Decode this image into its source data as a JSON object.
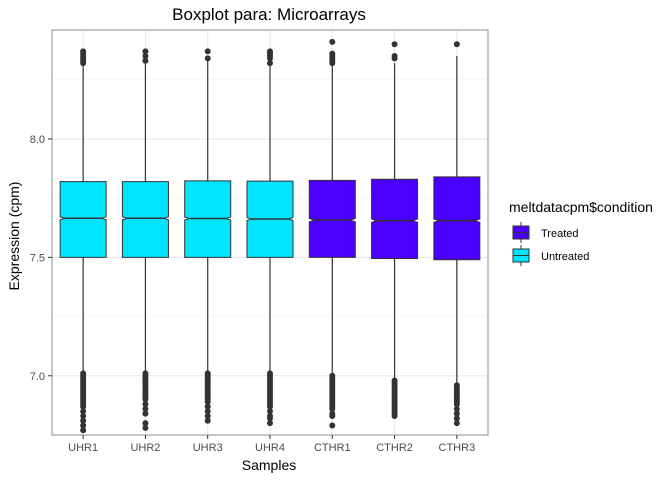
{
  "chart_data": {
    "type": "boxplot",
    "title": "Boxplot para: Microarrays",
    "xlabel": "Samples",
    "ylabel": "Expression (cpm)",
    "ylim": [
      6.75,
      8.46
    ],
    "yticks": [
      7.0,
      7.5,
      8.0
    ],
    "ytick_labels": [
      "7.0",
      "7.5",
      "8.0"
    ],
    "grid": true,
    "notched": true,
    "legend": {
      "title": "meltdatacpm$condition",
      "position": "right",
      "entries": [
        {
          "label": "Treated",
          "color": "#4b00ff"
        },
        {
          "label": "Untreated",
          "color": "#00e5ff"
        }
      ]
    },
    "categories": [
      "UHR1",
      "UHR2",
      "UHR3",
      "UHR4",
      "CTHR1",
      "CTHR2",
      "CTHR3"
    ],
    "boxes": [
      {
        "name": "UHR1",
        "condition": "Untreated",
        "q1": 7.5,
        "median": 7.665,
        "q3": 7.82,
        "whisker_low": 7.02,
        "whisker_high": 8.31,
        "notch": 0.006,
        "outliers_high": [
          8.32,
          8.33,
          8.34,
          8.35,
          8.36,
          8.37
        ],
        "outliers_low": [
          7.01,
          7.0,
          6.99,
          6.98,
          6.97,
          6.96,
          6.95,
          6.94,
          6.93,
          6.92,
          6.91,
          6.9,
          6.89,
          6.88,
          6.87,
          6.85,
          6.83,
          6.81,
          6.79,
          6.77
        ]
      },
      {
        "name": "UHR2",
        "condition": "Untreated",
        "q1": 7.5,
        "median": 7.665,
        "q3": 7.82,
        "whisker_low": 7.02,
        "whisker_high": 8.32,
        "notch": 0.006,
        "outliers_high": [
          8.33,
          8.35,
          8.37
        ],
        "outliers_low": [
          7.01,
          7.0,
          6.99,
          6.98,
          6.97,
          6.96,
          6.95,
          6.94,
          6.93,
          6.92,
          6.91,
          6.9,
          6.88,
          6.86,
          6.84,
          6.8,
          6.78
        ]
      },
      {
        "name": "UHR3",
        "condition": "Untreated",
        "q1": 7.5,
        "median": 7.664,
        "q3": 7.823,
        "whisker_low": 7.02,
        "whisker_high": 8.33,
        "notch": 0.006,
        "outliers_high": [
          8.34,
          8.37
        ],
        "outliers_low": [
          7.01,
          7.0,
          6.99,
          6.98,
          6.97,
          6.96,
          6.95,
          6.94,
          6.93,
          6.92,
          6.91,
          6.9,
          6.89,
          6.87,
          6.85,
          6.83,
          6.81
        ]
      },
      {
        "name": "UHR4",
        "condition": "Untreated",
        "q1": 7.5,
        "median": 7.662,
        "q3": 7.822,
        "whisker_low": 7.02,
        "whisker_high": 8.31,
        "notch": 0.006,
        "outliers_high": [
          8.32,
          8.34,
          8.35,
          8.36,
          8.37
        ],
        "outliers_low": [
          7.01,
          7.0,
          6.99,
          6.98,
          6.97,
          6.96,
          6.95,
          6.94,
          6.93,
          6.92,
          6.91,
          6.9,
          6.89,
          6.88,
          6.87,
          6.85,
          6.83,
          6.82,
          6.8
        ]
      },
      {
        "name": "CTHR1",
        "condition": "Treated",
        "q1": 7.5,
        "median": 7.657,
        "q3": 7.825,
        "whisker_low": 7.01,
        "whisker_high": 8.31,
        "notch": 0.007,
        "outliers_high": [
          8.32,
          8.33,
          8.34,
          8.35,
          8.36,
          8.41
        ],
        "outliers_low": [
          7.0,
          6.99,
          6.98,
          6.97,
          6.96,
          6.95,
          6.94,
          6.93,
          6.92,
          6.91,
          6.9,
          6.89,
          6.88,
          6.87,
          6.86,
          6.84,
          6.83,
          6.79
        ]
      },
      {
        "name": "CTHR2",
        "condition": "Treated",
        "q1": 7.495,
        "median": 7.655,
        "q3": 7.83,
        "whisker_low": 6.99,
        "whisker_high": 8.32,
        "notch": 0.007,
        "outliers_high": [
          8.34,
          8.35,
          8.4
        ],
        "outliers_low": [
          6.98,
          6.97,
          6.96,
          6.95,
          6.94,
          6.93,
          6.92,
          6.91,
          6.9,
          6.89,
          6.88,
          6.87,
          6.86,
          6.85,
          6.84,
          6.83
        ]
      },
      {
        "name": "CTHR3",
        "condition": "Treated",
        "q1": 7.49,
        "median": 7.655,
        "q3": 7.84,
        "whisker_low": 6.97,
        "whisker_high": 8.35,
        "notch": 0.007,
        "outliers_high": [
          8.4
        ],
        "outliers_low": [
          6.96,
          6.95,
          6.94,
          6.93,
          6.92,
          6.91,
          6.9,
          6.89,
          6.88,
          6.86,
          6.84,
          6.82,
          6.8
        ]
      }
    ],
    "colors": {
      "Treated": "#4b00ff",
      "Untreated": "#00e5ff",
      "box_stroke": "#333333",
      "outlier": "#333333",
      "grid_major": "#e6e6e6",
      "grid_minor": "#f3f3f3",
      "panel_border": "#8c8c8c",
      "axis_text": "#4d4d4d"
    }
  }
}
